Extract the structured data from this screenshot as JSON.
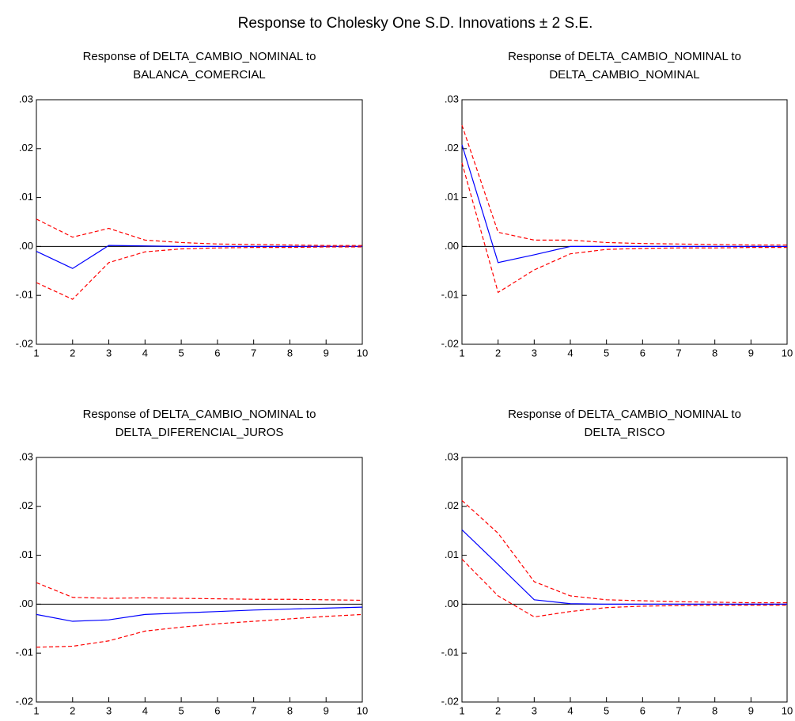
{
  "title": "Response to Cholesky One S.D. Innovations ± 2 S.E.",
  "chart_data": [
    {
      "type": "line",
      "title": [
        "Response of DELTA_CAMBIO_NOMINAL to",
        "BALANCA_COMERCIAL"
      ],
      "x": [
        1,
        2,
        3,
        4,
        5,
        6,
        7,
        8,
        9,
        10
      ],
      "xlim": [
        1,
        10
      ],
      "xticks": [
        1,
        2,
        3,
        4,
        5,
        6,
        7,
        8,
        9,
        10
      ],
      "ylim": [
        -0.02,
        0.03
      ],
      "yticks": [
        {
          "value": 0.03,
          "label": ".03"
        },
        {
          "value": 0.02,
          "label": ".02"
        },
        {
          "value": 0.01,
          "label": ".01"
        },
        {
          "value": 0,
          "label": ".00"
        },
        {
          "value": -0.01,
          "label": "-.01"
        },
        {
          "value": -0.02,
          "label": "-.02"
        }
      ],
      "series": [
        {
          "color": "#0000ff",
          "dashed": false,
          "values": [
            -0.001,
            -0.0045,
            0.0002,
            0.0001,
            0,
            0,
            0,
            0,
            0,
            0
          ]
        },
        {
          "color": "#ff0000",
          "dashed": true,
          "values": [
            0.0056,
            0.0019,
            0.0037,
            0.0013,
            0.0008,
            0.0005,
            0.0004,
            0.0003,
            0.0002,
            0.0002
          ]
        },
        {
          "color": "#ff0000",
          "dashed": true,
          "values": [
            -0.0074,
            -0.0108,
            -0.0033,
            -0.0011,
            -0.0005,
            -0.0003,
            -0.0002,
            -0.0002,
            -0.0001,
            -0.0001
          ]
        }
      ]
    },
    {
      "type": "line",
      "title": [
        "Response of DELTA_CAMBIO_NOMINAL to",
        "DELTA_CAMBIO_NOMINAL"
      ],
      "x": [
        1,
        2,
        3,
        4,
        5,
        6,
        7,
        8,
        9,
        10
      ],
      "xlim": [
        1,
        10
      ],
      "xticks": [
        1,
        2,
        3,
        4,
        5,
        6,
        7,
        8,
        9,
        10
      ],
      "ylim": [
        -0.02,
        0.03
      ],
      "yticks": [
        {
          "value": 0.03,
          "label": ".03"
        },
        {
          "value": 0.02,
          "label": ".02"
        },
        {
          "value": 0.01,
          "label": ".01"
        },
        {
          "value": 0,
          "label": ".00"
        },
        {
          "value": -0.01,
          "label": "-.01"
        },
        {
          "value": -0.02,
          "label": "-.02"
        }
      ],
      "series": [
        {
          "color": "#0000ff",
          "dashed": false,
          "values": [
            0.0208,
            -0.0033,
            -0.0017,
            0,
            0,
            0,
            0,
            0,
            0,
            0
          ]
        },
        {
          "color": "#ff0000",
          "dashed": true,
          "values": [
            0.0248,
            0.0029,
            0.0013,
            0.0013,
            0.0008,
            0.0006,
            0.0005,
            0.0004,
            0.0003,
            0.0003
          ]
        },
        {
          "color": "#ff0000",
          "dashed": true,
          "values": [
            0.0171,
            -0.0094,
            -0.0048,
            -0.0015,
            -0.0006,
            -0.0004,
            -0.0003,
            -0.0003,
            -0.0002,
            -0.0002
          ]
        }
      ]
    },
    {
      "type": "line",
      "title": [
        "Response of DELTA_CAMBIO_NOMINAL to",
        "DELTA_DIFERENCIAL_JUROS"
      ],
      "x": [
        1,
        2,
        3,
        4,
        5,
        6,
        7,
        8,
        9,
        10
      ],
      "xlim": [
        1,
        10
      ],
      "xticks": [
        1,
        2,
        3,
        4,
        5,
        6,
        7,
        8,
        9,
        10
      ],
      "ylim": [
        -0.02,
        0.03
      ],
      "yticks": [
        {
          "value": 0.03,
          "label": ".03"
        },
        {
          "value": 0.02,
          "label": ".02"
        },
        {
          "value": 0.01,
          "label": ".01"
        },
        {
          "value": 0,
          "label": ".00"
        },
        {
          "value": -0.01,
          "label": "-.01"
        },
        {
          "value": -0.02,
          "label": "-.02"
        }
      ],
      "series": [
        {
          "color": "#0000ff",
          "dashed": false,
          "values": [
            -0.0021,
            -0.0035,
            -0.0032,
            -0.0021,
            -0.0018,
            -0.0015,
            -0.0012,
            -0.001,
            -0.0008,
            -0.0006
          ]
        },
        {
          "color": "#ff0000",
          "dashed": true,
          "values": [
            0.0044,
            0.0014,
            0.0012,
            0.0013,
            0.0012,
            0.0011,
            0.001,
            0.001,
            0.0009,
            0.0008
          ]
        },
        {
          "color": "#ff0000",
          "dashed": true,
          "values": [
            -0.0088,
            -0.0086,
            -0.0075,
            -0.0055,
            -0.0047,
            -0.004,
            -0.0035,
            -0.003,
            -0.0025,
            -0.0021
          ]
        }
      ]
    },
    {
      "type": "line",
      "title": [
        "Response of DELTA_CAMBIO_NOMINAL to",
        "DELTA_RISCO"
      ],
      "x": [
        1,
        2,
        3,
        4,
        5,
        6,
        7,
        8,
        9,
        10
      ],
      "xlim": [
        1,
        10
      ],
      "xticks": [
        1,
        2,
        3,
        4,
        5,
        6,
        7,
        8,
        9,
        10
      ],
      "ylim": [
        -0.02,
        0.03
      ],
      "yticks": [
        {
          "value": 0.03,
          "label": ".03"
        },
        {
          "value": 0.02,
          "label": ".02"
        },
        {
          "value": 0.01,
          "label": ".01"
        },
        {
          "value": 0,
          "label": ".00"
        },
        {
          "value": -0.01,
          "label": "-.01"
        },
        {
          "value": -0.02,
          "label": "-.02"
        }
      ],
      "series": [
        {
          "color": "#0000ff",
          "dashed": false,
          "values": [
            0.0152,
            0.0081,
            0.0009,
            0.0001,
            0,
            0,
            0,
            0,
            0,
            0
          ]
        },
        {
          "color": "#ff0000",
          "dashed": true,
          "values": [
            0.0212,
            0.0145,
            0.0046,
            0.0017,
            0.0009,
            0.0007,
            0.0005,
            0.0004,
            0.0003,
            0.0003
          ]
        },
        {
          "color": "#ff0000",
          "dashed": true,
          "values": [
            0.0092,
            0.0017,
            -0.0026,
            -0.0015,
            -0.0007,
            -0.0004,
            -0.0003,
            -0.0002,
            -0.0002,
            -0.0002
          ]
        }
      ]
    }
  ]
}
